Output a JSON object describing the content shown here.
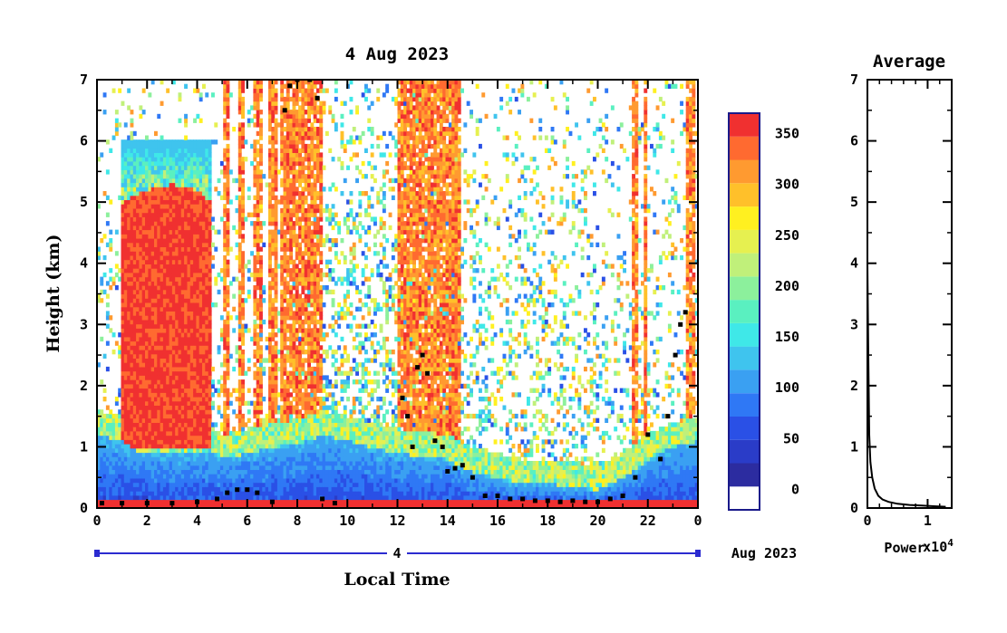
{
  "chart_data": [
    {
      "type": "heatmap",
      "title": "4 Aug 2023",
      "xlabel": "Local Time",
      "ylabel": "Height (km)",
      "x_ticks": [
        "0",
        "2",
        "4",
        "6",
        "8",
        "10",
        "12",
        "14",
        "16",
        "18",
        "20",
        "22",
        "0"
      ],
      "y_ticks": [
        "0",
        "1",
        "2",
        "3",
        "4",
        "5",
        "6",
        "7"
      ],
      "xlim": [
        0,
        24
      ],
      "ylim": [
        0,
        7
      ],
      "date_axis": {
        "day_label": "4",
        "month_label": "Aug 2023"
      },
      "colorbar": {
        "tick_labels": [
          "0",
          "50",
          "100",
          "150",
          "200",
          "250",
          "300",
          "350"
        ],
        "range": [
          0,
          380
        ],
        "colors": [
          "#ffffff",
          "#2c2ca0",
          "#2a3cc8",
          "#2a50e6",
          "#2f78f5",
          "#3aa0f2",
          "#3fc4ee",
          "#3fe8e8",
          "#5af0c0",
          "#8cf09c",
          "#c0f07a",
          "#e6f050",
          "#fff020",
          "#ffc02a",
          "#ff9a30",
          "#ff6a30",
          "#f03030"
        ]
      },
      "features": [
        {
          "series": "layer",
          "x": [
            0,
            1,
            1.5,
            2,
            3,
            4,
            4.5,
            5,
            6,
            7,
            8,
            9,
            10,
            11,
            12,
            13,
            14,
            15,
            16,
            17,
            18,
            19,
            20,
            21,
            22,
            23,
            24
          ],
          "y": [
            1.2,
            1.1,
            0.95,
            0.9,
            0.88,
            0.9,
            0.95,
            0.8,
            0.9,
            1.0,
            1.05,
            1.2,
            1.1,
            1.0,
            0.9,
            0.85,
            0.8,
            0.6,
            0.5,
            0.4,
            0.4,
            0.35,
            0.3,
            0.5,
            0.8,
            1.0,
            1.1
          ]
        },
        {
          "series": "cloud_top",
          "x": [
            1,
            1.5,
            2,
            3,
            4,
            4.6
          ],
          "y": [
            5.0,
            5.1,
            5.2,
            5.3,
            5.2,
            5.0
          ]
        }
      ],
      "boundary_points": {
        "x": [
          0.2,
          1,
          2,
          3,
          4,
          4.8,
          5.2,
          5.6,
          6,
          6.4,
          7,
          7.5,
          7.7,
          8,
          8.5,
          8.8,
          9,
          9.5,
          12.2,
          12.4,
          12.6,
          12.8,
          13,
          13.2,
          13.5,
          13.8,
          14,
          14.3,
          14.6,
          15,
          15.5,
          16,
          16.5,
          17,
          17.5,
          18,
          18.5,
          19,
          19.5,
          20,
          20.5,
          21,
          21.5,
          22,
          22.5,
          22.8,
          23.1,
          23.3,
          23.5
        ],
        "y": [
          0.08,
          0.08,
          0.08,
          0.08,
          0.1,
          0.15,
          0.25,
          0.3,
          0.3,
          0.25,
          0.1,
          6.5,
          6.9,
          7.0,
          7.0,
          6.7,
          0.15,
          0.08,
          1.8,
          1.5,
          1.0,
          2.3,
          2.5,
          2.2,
          1.1,
          1.0,
          0.6,
          0.65,
          0.7,
          0.5,
          0.2,
          0.2,
          0.15,
          0.15,
          0.12,
          0.12,
          0.1,
          0.12,
          0.1,
          0.1,
          0.15,
          0.2,
          0.5,
          1.2,
          0.8,
          1.5,
          2.5,
          3.0,
          3.2
        ]
      }
    },
    {
      "type": "line",
      "title": "Average",
      "xlabel": "Power",
      "x_exponent_label": "x10^4",
      "x_ticks": [
        "0",
        "1"
      ],
      "y_ticks": [
        "0",
        "1",
        "2",
        "3",
        "4",
        "5",
        "6",
        "7"
      ],
      "xlim": [
        0,
        1.4
      ],
      "ylim": [
        0,
        7
      ],
      "series": [
        {
          "x": [
            0.0,
            0.015,
            0.03,
            0.05,
            0.08,
            0.12,
            0.18,
            0.25,
            0.35,
            0.5,
            0.7,
            0.9,
            1.1,
            1.3
          ],
          "y": [
            4.0,
            2.5,
            1.2,
            0.75,
            0.5,
            0.32,
            0.2,
            0.14,
            0.1,
            0.07,
            0.05,
            0.04,
            0.03,
            0.02
          ]
        }
      ]
    }
  ]
}
